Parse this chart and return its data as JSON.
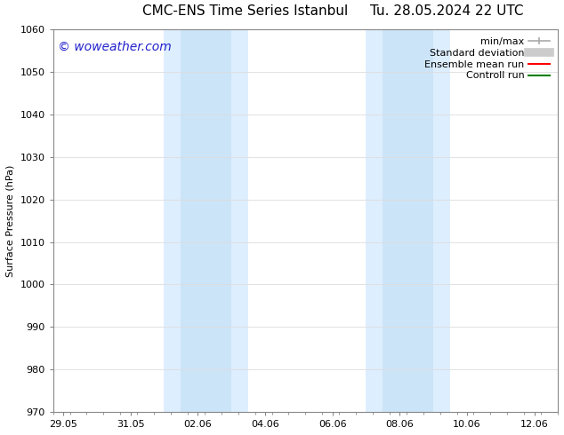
{
  "title": "CMC-ENS Time Series Istanbul",
  "title_right": "Tu. 28.05.2024 22 UTC",
  "ylabel": "Surface Pressure (hPa)",
  "ylim": [
    970,
    1060
  ],
  "yticks": [
    970,
    980,
    990,
    1000,
    1010,
    1020,
    1030,
    1040,
    1050,
    1060
  ],
  "xtick_labels": [
    "29.05",
    "31.05",
    "02.06",
    "04.06",
    "06.06",
    "08.06",
    "10.06",
    "12.06"
  ],
  "xtick_positions": [
    0,
    2,
    4,
    6,
    8,
    10,
    12,
    14
  ],
  "xlim": [
    -0.3,
    14.7
  ],
  "watermark": "© woweather.com",
  "watermark_color": "#2222cc",
  "shaded_regions": [
    {
      "x_start": 3.0,
      "x_end": 3.5,
      "color": "#ddeeff"
    },
    {
      "x_start": 3.5,
      "x_end": 5.0,
      "color": "#cce4f7"
    },
    {
      "x_start": 5.0,
      "x_end": 5.5,
      "color": "#ddeeff"
    },
    {
      "x_start": 9.0,
      "x_end": 9.5,
      "color": "#ddeeff"
    },
    {
      "x_start": 9.5,
      "x_end": 11.0,
      "color": "#cce4f7"
    },
    {
      "x_start": 11.0,
      "x_end": 11.5,
      "color": "#ddeeff"
    }
  ],
  "legend_entries": [
    {
      "label": "min/max",
      "color": "#aaaaaa",
      "lw": 1.2,
      "ls": "-",
      "type": "minmax"
    },
    {
      "label": "Standard deviation",
      "color": "#cccccc",
      "lw": 7,
      "ls": "-",
      "type": "band"
    },
    {
      "label": "Ensemble mean run",
      "color": "red",
      "lw": 1.5,
      "ls": "-",
      "type": "line"
    },
    {
      "label": "Controll run",
      "color": "green",
      "lw": 1.5,
      "ls": "-",
      "type": "line"
    }
  ],
  "bg_color": "#ffffff",
  "grid_color": "#dddddd",
  "title_fontsize": 11,
  "axis_fontsize": 8,
  "legend_fontsize": 8,
  "watermark_fontsize": 10
}
